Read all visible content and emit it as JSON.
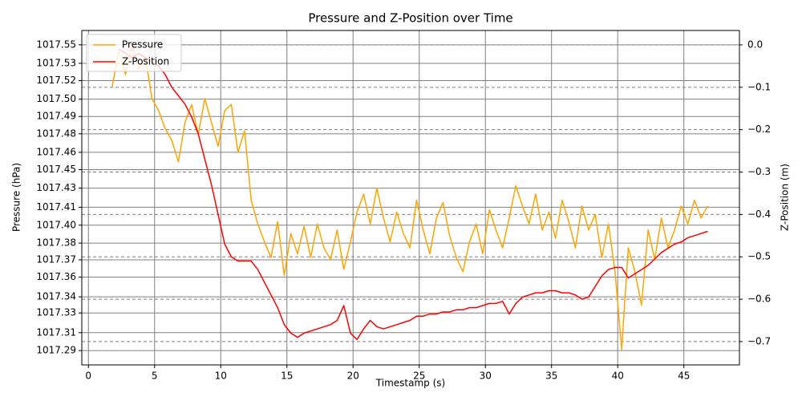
{
  "chart_data": {
    "type": "line",
    "title": "Pressure and Z-Position over Time",
    "xlabel": "Timestamp (s)",
    "ylabel": "Pressure (hPa)",
    "y2label": "Z-Position (m)",
    "x": [
      1.8,
      2.3,
      2.8,
      3.3,
      3.8,
      4.3,
      4.8,
      5.3,
      5.8,
      6.3,
      6.8,
      7.3,
      7.8,
      8.3,
      8.8,
      9.3,
      9.8,
      10.3,
      10.8,
      11.3,
      11.8,
      12.3,
      12.8,
      13.3,
      13.8,
      14.3,
      14.8,
      15.3,
      15.8,
      16.3,
      16.8,
      17.3,
      17.8,
      18.3,
      18.8,
      19.3,
      19.8,
      20.3,
      20.8,
      21.3,
      21.8,
      22.3,
      22.8,
      23.3,
      23.8,
      24.3,
      24.8,
      25.3,
      25.8,
      26.3,
      26.8,
      27.3,
      27.8,
      28.3,
      28.8,
      29.3,
      29.8,
      30.3,
      30.8,
      31.3,
      31.8,
      32.3,
      32.8,
      33.3,
      33.8,
      34.3,
      34.8,
      35.3,
      35.8,
      36.3,
      36.8,
      37.3,
      37.8,
      38.3,
      38.8,
      39.3,
      39.8,
      40.3,
      40.8,
      41.3,
      41.8,
      42.3,
      42.8,
      43.3,
      43.8,
      44.3,
      44.8,
      45.3,
      45.8,
      46.3,
      46.8
    ],
    "series": [
      {
        "name": "Pressure",
        "color": "#ffa500",
        "axis": "y",
        "values": [
          1017.515,
          1017.545,
          1017.525,
          1017.55,
          1017.53,
          1017.54,
          1017.505,
          1017.495,
          1017.48,
          1017.47,
          1017.452,
          1017.485,
          1017.5,
          1017.475,
          1017.505,
          1017.485,
          1017.465,
          1017.495,
          1017.5,
          1017.46,
          1017.478,
          1017.42,
          1017.4,
          1017.385,
          1017.372,
          1017.402,
          1017.357,
          1017.392,
          1017.375,
          1017.398,
          1017.372,
          1017.4,
          1017.38,
          1017.37,
          1017.395,
          1017.362,
          1017.385,
          1017.41,
          1017.425,
          1017.4,
          1017.43,
          1017.405,
          1017.385,
          1017.41,
          1017.392,
          1017.38,
          1017.42,
          1017.395,
          1017.375,
          1017.405,
          1017.418,
          1017.39,
          1017.372,
          1017.36,
          1017.385,
          1017.4,
          1017.375,
          1017.412,
          1017.395,
          1017.38,
          1017.405,
          1017.432,
          1017.415,
          1017.4,
          1017.425,
          1017.395,
          1017.41,
          1017.388,
          1017.42,
          1017.402,
          1017.38,
          1017.415,
          1017.395,
          1017.408,
          1017.372,
          1017.4,
          1017.36,
          1017.295,
          1017.38,
          1017.36,
          1017.332,
          1017.395,
          1017.37,
          1017.405,
          1017.38,
          1017.395,
          1017.415,
          1017.4,
          1017.42,
          1017.405,
          1017.415
        ]
      },
      {
        "name": "Z-Position",
        "color": "#ff0000",
        "axis": "y2",
        "values": [
          null,
          -0.01,
          -0.02,
          -0.03,
          -0.02,
          -0.03,
          -0.04,
          -0.05,
          -0.07,
          -0.1,
          -0.12,
          -0.14,
          -0.17,
          -0.21,
          -0.27,
          -0.33,
          -0.4,
          -0.47,
          -0.5,
          -0.51,
          -0.51,
          -0.51,
          -0.53,
          -0.56,
          -0.59,
          -0.62,
          -0.66,
          -0.68,
          -0.69,
          -0.68,
          -0.675,
          -0.67,
          -0.665,
          -0.66,
          -0.65,
          -0.615,
          -0.68,
          -0.695,
          -0.67,
          -0.65,
          -0.665,
          -0.67,
          -0.665,
          -0.66,
          -0.655,
          -0.65,
          -0.64,
          -0.64,
          -0.635,
          -0.635,
          -0.63,
          -0.63,
          -0.625,
          -0.625,
          -0.62,
          -0.62,
          -0.615,
          -0.61,
          -0.61,
          -0.605,
          -0.635,
          -0.61,
          -0.595,
          -0.59,
          -0.585,
          -0.585,
          -0.58,
          -0.58,
          -0.585,
          -0.585,
          -0.59,
          -0.6,
          -0.595,
          -0.57,
          -0.545,
          -0.53,
          -0.525,
          -0.525,
          -0.55,
          -0.54,
          -0.53,
          -0.52,
          -0.505,
          -0.49,
          -0.48,
          -0.47,
          -0.465,
          -0.455,
          -0.45,
          -0.445,
          -0.44
        ]
      }
    ],
    "xlim": [
      -0.5,
      49.2
    ],
    "xticks": [
      0,
      5,
      10,
      15,
      20,
      25,
      30,
      35,
      40,
      45
    ],
    "ylim": [
      1017.282,
      1017.562
    ],
    "yticks": [
      {
        "value": 1017.294,
        "label": "1017.29"
      },
      {
        "value": 1017.309,
        "label": "1017.31"
      },
      {
        "value": 1017.3255,
        "label": "1017.33"
      },
      {
        "value": 1017.339,
        "label": "1017.34"
      },
      {
        "value": 1017.3555,
        "label": "1017.36"
      },
      {
        "value": 1017.37,
        "label": "1017.37"
      },
      {
        "value": 1017.384,
        "label": "1017.38"
      },
      {
        "value": 1017.399,
        "label": "1017.40"
      },
      {
        "value": 1017.414,
        "label": "1017.41"
      },
      {
        "value": 1017.43,
        "label": "1017.43"
      },
      {
        "value": 1017.4455,
        "label": "1017.45"
      },
      {
        "value": 1017.46,
        "label": "1017.46"
      },
      {
        "value": 1017.4755,
        "label": "1017.48"
      },
      {
        "value": 1017.49,
        "label": "1017.49"
      },
      {
        "value": 1017.5045,
        "label": "1017.50"
      },
      {
        "value": 1017.52,
        "label": "1017.52"
      },
      {
        "value": 1017.5345,
        "label": "1017.53"
      },
      {
        "value": 1017.55,
        "label": "1017.55"
      }
    ],
    "y2lim": [
      -0.755,
      0.034
    ],
    "y2ticks": [
      {
        "value": -0.7,
        "label": "−0.7"
      },
      {
        "value": -0.6,
        "label": "−0.6"
      },
      {
        "value": -0.5,
        "label": "−0.5"
      },
      {
        "value": -0.4,
        "label": "−0.4"
      },
      {
        "value": -0.3,
        "label": "−0.3"
      },
      {
        "value": -0.2,
        "label": "−0.2"
      },
      {
        "value": -0.1,
        "label": "−0.1"
      },
      {
        "value": 0,
        "label": "0.0"
      }
    ],
    "grid": true,
    "legend": "upper left"
  }
}
